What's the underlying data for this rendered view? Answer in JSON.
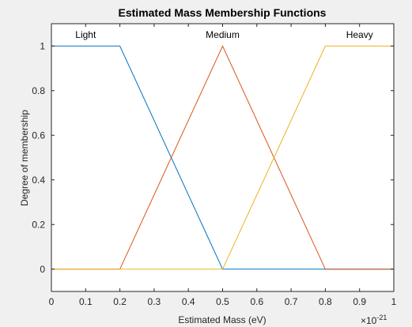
{
  "chart_data": {
    "type": "line",
    "title": "Estimated Mass Membership Functions",
    "xlabel": "Estimated Mass (eV)",
    "ylabel": "Degree of membership",
    "x_exponent_label": "×10",
    "x_exponent": "-21",
    "xlim": [
      0,
      1
    ],
    "ylim": [
      -0.1,
      1.1
    ],
    "xticks": [
      "0",
      "0.1",
      "0.2",
      "0.3",
      "0.4",
      "0.5",
      "0.6",
      "0.7",
      "0.8",
      "0.9",
      "1"
    ],
    "yticks": [
      "0",
      "0.2",
      "0.4",
      "0.6",
      "0.8",
      "1"
    ],
    "grid": false,
    "series": [
      {
        "name": "Light",
        "color": "#0072BD",
        "x": [
          0,
          0.2,
          0.5,
          1
        ],
        "y": [
          1,
          1,
          0,
          0
        ],
        "label_x": 0.1
      },
      {
        "name": "Medium",
        "color": "#D95319",
        "x": [
          0,
          0.2,
          0.5,
          0.8,
          1
        ],
        "y": [
          0,
          0,
          1,
          0,
          0
        ],
        "label_x": 0.5
      },
      {
        "name": "Heavy",
        "color": "#EDB120",
        "x": [
          0,
          0.5,
          0.8,
          1
        ],
        "y": [
          0,
          0,
          1,
          1
        ],
        "label_x": 0.9
      }
    ]
  }
}
